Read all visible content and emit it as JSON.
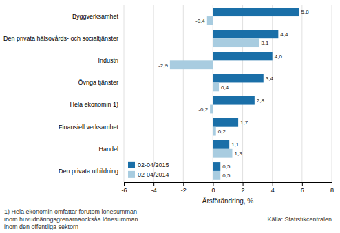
{
  "chart_data": {
    "type": "bar",
    "orientation": "horizontal",
    "categories": [
      "Byggverksamhet",
      "Den privata hälsovårds- och socialtjänster",
      "Industri",
      "Övriga tjänster",
      "Hela ekonomin 1)",
      "Finansiell verksamhet",
      "Handel",
      "Den privata utbildning"
    ],
    "series": [
      {
        "name": "02-04/2015",
        "color": "#1a6fa8",
        "values": [
          5.8,
          4.4,
          4.0,
          3.4,
          2.8,
          1.7,
          1.1,
          0.5
        ],
        "value_labels": [
          "5,8",
          "4,4",
          "4,0",
          "3,4",
          "2,8",
          "1,7",
          "1,1",
          "0,5"
        ]
      },
      {
        "name": "02-04/2014",
        "color": "#a8cce0",
        "values": [
          -0.4,
          3.1,
          -2.9,
          0.4,
          -0.2,
          0.2,
          1.3,
          0.5
        ],
        "value_labels": [
          "-0,4",
          "3,1",
          "-2,9",
          "0,4",
          "-0,2",
          "0,2",
          "1,3",
          "0,5"
        ]
      }
    ],
    "xlim": [
      -6,
      8
    ],
    "xticks": [
      -6,
      -4,
      -2,
      0,
      2,
      4,
      6,
      8
    ],
    "xlabel": "Årsförändring, %",
    "grid": true,
    "legend": "lower left",
    "data_labels": true,
    "annotations": [
      "1) Hela ekonomin omfattar förutom lönesumman",
      "inom huvudnäringsgrenarnaocksåa lönesumman",
      "inom den offentliga sektorn",
      "Källa:  Statistikcentralen"
    ]
  }
}
